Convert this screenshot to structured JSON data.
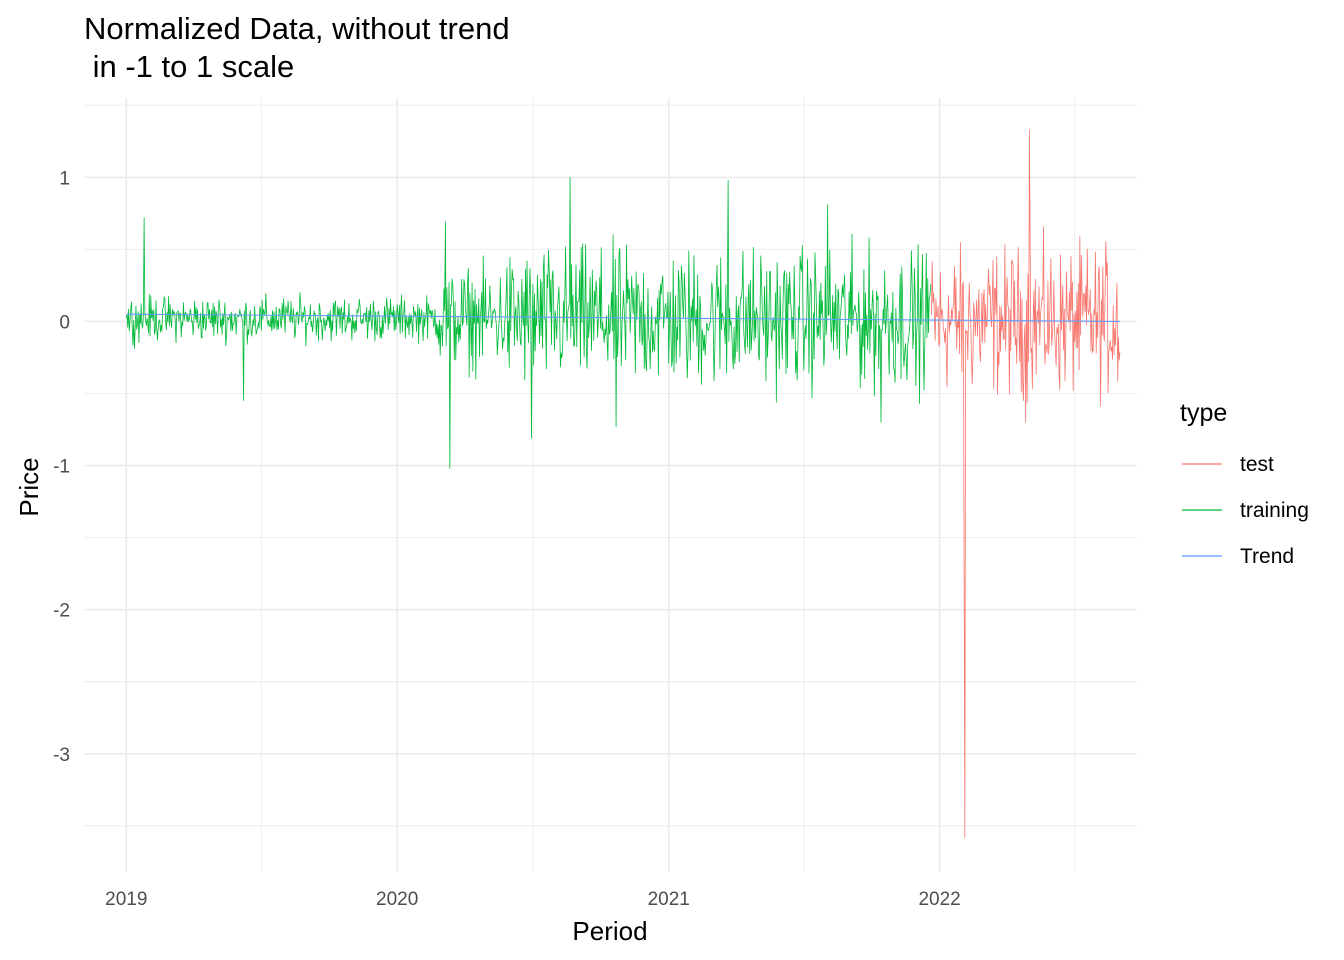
{
  "chart_data": {
    "type": "line",
    "title": "Normalized Data, without trend\n in -1 to 1 scale",
    "xlabel": "Period",
    "ylabel": "Price",
    "x_ticks": [
      "2019",
      "2020",
      "2021",
      "2022"
    ],
    "y_ticks": [
      "1",
      "0",
      "-1",
      "-2",
      "-3"
    ],
    "xlim": [
      "2018-11-05",
      "2022-09-24"
    ],
    "ylim": [
      -3.82,
      1.55
    ],
    "grid": true,
    "legend": {
      "title": "type",
      "placement": "right"
    },
    "series": [
      {
        "name": "test",
        "color": "#F8766D",
        "x_range": [
          "2021-12-21",
          "2022-09-01"
        ],
        "y_baseline": 0.0,
        "amplitude": 0.35,
        "extremes": [
          {
            "x": "2022-02-04",
            "y": -3.58
          },
          {
            "x": "2022-02-03",
            "y": -1.7
          },
          {
            "x": "2022-05-02",
            "y": 1.33
          },
          {
            "x": "2022-05-03",
            "y": 0.56
          },
          {
            "x": "2022-04-27",
            "y": -0.7
          }
        ]
      },
      {
        "name": "training",
        "color": "#00BA38",
        "x_range": [
          "2019-01-01",
          "2021-12-20"
        ],
        "y_baseline": 0.02,
        "amplitude": 0.3,
        "extremes": [
          {
            "x": "2019-01-25",
            "y": 0.72
          },
          {
            "x": "2019-06-08",
            "y": -0.55
          },
          {
            "x": "2020-03-12",
            "y": -1.02
          },
          {
            "x": "2020-03-06",
            "y": 0.69
          },
          {
            "x": "2020-06-30",
            "y": -0.81
          },
          {
            "x": "2020-08-21",
            "y": 1.0
          },
          {
            "x": "2020-10-22",
            "y": -0.73
          },
          {
            "x": "2021-03-22",
            "y": 0.98
          },
          {
            "x": "2021-08-03",
            "y": 0.81
          },
          {
            "x": "2021-10-14",
            "y": -0.7
          }
        ]
      },
      {
        "name": "Trend",
        "color": "#619CFF",
        "x": [
          "2019-01-01",
          "2022-09-01"
        ],
        "y": [
          0.05,
          0.0
        ]
      }
    ]
  }
}
